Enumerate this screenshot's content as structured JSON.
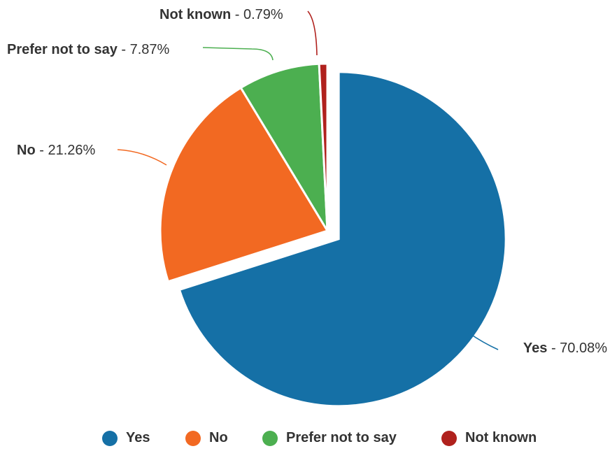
{
  "chart_data": {
    "type": "pie",
    "categories": [
      "Yes",
      "No",
      "Prefer not to say",
      "Not known"
    ],
    "values": [
      70.08,
      21.26,
      7.87,
      0.79
    ],
    "unit": "%",
    "labels": [
      {
        "name": "Yes",
        "value": "70.08%"
      },
      {
        "name": "No",
        "value": "21.26%"
      },
      {
        "name": "Prefer not to say",
        "value": "7.87%"
      },
      {
        "name": "Not known",
        "value": "0.79%"
      }
    ],
    "colors": [
      "#1570a6",
      "#f26922",
      "#4caf50",
      "#b0211d"
    ],
    "exploded_slice": "Yes",
    "legend_position": "bottom",
    "title": ""
  }
}
